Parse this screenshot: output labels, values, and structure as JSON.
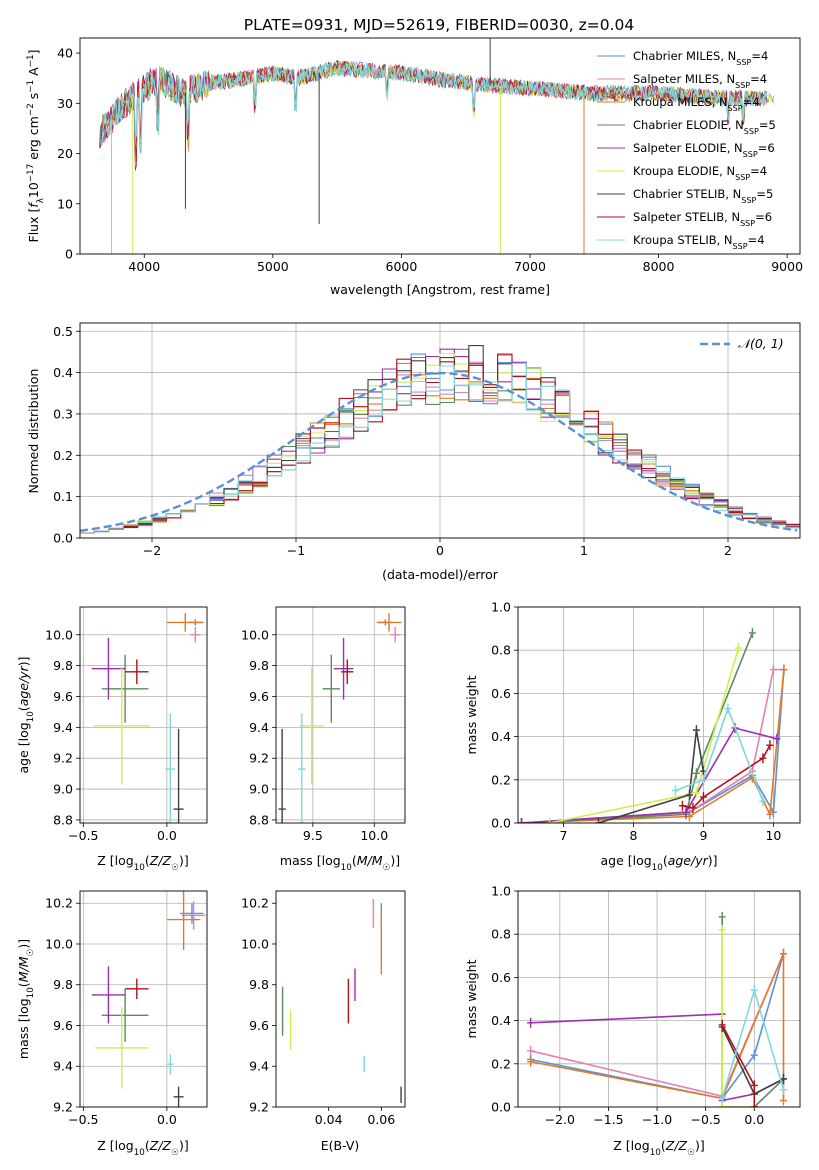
{
  "figure": {
    "title": "PLATE=0931, MJD=52619, FIBERID=0030, z=0.04"
  },
  "legend_entries": [
    {
      "name": "Chabrier MILES",
      "nssp": "4",
      "color": "#5b8fd8"
    },
    {
      "name": "Salpeter MILES",
      "nssp": "4",
      "color": "#e082b6"
    },
    {
      "name": "Kroupa MILES",
      "nssp": "4",
      "color": "#e07b27"
    },
    {
      "name": "Chabrier ELODIE",
      "nssp": "5",
      "color": "#5c8a5e"
    },
    {
      "name": "Salpeter ELODIE",
      "nssp": "6",
      "color": "#9b2fae"
    },
    {
      "name": "Kroupa ELODIE",
      "nssp": "4",
      "color": "#cfee4f"
    },
    {
      "name": "Chabrier STELIB",
      "nssp": "5",
      "color": "#404040"
    },
    {
      "name": "Salpeter STELIB",
      "nssp": "6",
      "color": "#b30f1a"
    },
    {
      "name": "Kroupa STELIB",
      "nssp": "4",
      "color": "#7fd8dd"
    }
  ],
  "chart_data": [
    {
      "id": "spectrum",
      "type": "line",
      "title": "PLATE=0931, MJD=52619, FIBERID=0030, z=0.04",
      "xlabel": "wavelength [Angstrom, rest frame]",
      "ylabel": "Flux [f_λ10^-17 erg cm^-2 s^-1 A^-1]",
      "xlim": [
        3500,
        9100
      ],
      "ylim": [
        0,
        43
      ],
      "xticks": [
        4000,
        5000,
        6000,
        7000,
        8000,
        9000
      ],
      "yticks": [
        0,
        10,
        20,
        30,
        40
      ],
      "grid": false,
      "legend": "top-right",
      "continuum": [
        {
          "x": 3650,
          "y": 24
        },
        {
          "x": 3750,
          "y": 27
        },
        {
          "x": 3850,
          "y": 30
        },
        {
          "x": 4000,
          "y": 33
        },
        {
          "x": 4100,
          "y": 35
        },
        {
          "x": 4300,
          "y": 32
        },
        {
          "x": 4500,
          "y": 34
        },
        {
          "x": 4800,
          "y": 35
        },
        {
          "x": 5000,
          "y": 36
        },
        {
          "x": 5200,
          "y": 35
        },
        {
          "x": 5500,
          "y": 37
        },
        {
          "x": 6000,
          "y": 36
        },
        {
          "x": 6500,
          "y": 34
        },
        {
          "x": 7000,
          "y": 33
        },
        {
          "x": 7500,
          "y": 32
        },
        {
          "x": 8000,
          "y": 32
        },
        {
          "x": 8500,
          "y": 31
        },
        {
          "x": 8850,
          "y": 31
        }
      ]
    },
    {
      "id": "residuals",
      "type": "line",
      "xlabel": "(data-model)/error",
      "ylabel": "Normed distribution",
      "xlim": [
        -2.5,
        2.5
      ],
      "ylim": [
        0,
        0.52
      ],
      "xticks": [
        -2,
        -1,
        0,
        1,
        2
      ],
      "yticks": [
        0.0,
        0.1,
        0.2,
        0.3,
        0.4,
        0.5
      ],
      "grid": true,
      "legend": "top-right",
      "reference_curve": {
        "name": "𝒩(0, 1)",
        "mean": 0,
        "sigma": 1,
        "color": "#5b8fd8"
      }
    },
    {
      "id": "age_vs_Z",
      "type": "scatter",
      "xlabel": "Z [log10(Z/Z☉)]",
      "ylabel": "age  [log10(age/yr)]",
      "xlim": [
        -0.52,
        0.24
      ],
      "ylim": [
        8.78,
        10.18
      ],
      "xticks": [
        -0.5,
        0.0
      ],
      "yticks": [
        8.8,
        9.0,
        9.2,
        9.4,
        9.6,
        9.8,
        10.0
      ],
      "grid": true,
      "points": [
        {
          "series": "Chabrier MILES",
          "x": 0.17,
          "y": 10.08,
          "xerr": 0.04,
          "yerr": 0.02
        },
        {
          "series": "Salpeter MILES",
          "x": 0.17,
          "y": 10.0,
          "xerr": 0.03,
          "yerr": 0.05
        },
        {
          "series": "Kroupa MILES",
          "x": 0.11,
          "y": 10.08,
          "xerr": 0.11,
          "yerr": 0.06
        },
        {
          "series": "Chabrier ELODIE",
          "x": -0.25,
          "y": 9.65,
          "xerr": 0.14,
          "yerr": 0.22
        },
        {
          "series": "Salpeter ELODIE",
          "x": -0.35,
          "y": 9.78,
          "xerr": 0.1,
          "yerr": 0.2
        },
        {
          "series": "Kroupa ELODIE",
          "x": -0.27,
          "y": 9.41,
          "xerr": 0.17,
          "yerr": 0.38
        },
        {
          "series": "Chabrier STELIB",
          "x": 0.07,
          "y": 8.87,
          "xerr": 0.03,
          "yerr": 0.52
        },
        {
          "series": "Salpeter STELIB",
          "x": -0.18,
          "y": 9.76,
          "xerr": 0.07,
          "yerr": 0.08
        },
        {
          "series": "Kroupa STELIB",
          "x": 0.02,
          "y": 9.13,
          "xerr": 0.03,
          "yerr": 0.36
        }
      ]
    },
    {
      "id": "age_vs_mass",
      "type": "scatter",
      "xlabel": "mass [log10(M/M☉)]",
      "ylabel": "",
      "xlim": [
        9.2,
        10.25
      ],
      "ylim": [
        8.78,
        10.18
      ],
      "xticks": [
        9.5,
        10.0
      ],
      "yticks": [
        8.8,
        9.0,
        9.2,
        9.4,
        9.6,
        9.8,
        10.0
      ],
      "grid": true,
      "points": [
        {
          "series": "Chabrier MILES",
          "x": 10.09,
          "y": 10.08,
          "xerr": 0.06,
          "yerr": 0.02
        },
        {
          "series": "Salpeter MILES",
          "x": 10.17,
          "y": 10.0,
          "xerr": 0.04,
          "yerr": 0.05
        },
        {
          "series": "Kroupa MILES",
          "x": 10.12,
          "y": 10.08,
          "xerr": 0.1,
          "yerr": 0.06
        },
        {
          "series": "Chabrier ELODIE",
          "x": 9.65,
          "y": 9.65,
          "xerr": 0.07,
          "yerr": 0.22
        },
        {
          "series": "Salpeter ELODIE",
          "x": 9.75,
          "y": 9.78,
          "xerr": 0.08,
          "yerr": 0.2
        },
        {
          "series": "Kroupa ELODIE",
          "x": 9.49,
          "y": 9.41,
          "xerr": 0.1,
          "yerr": 0.38
        },
        {
          "series": "Chabrier STELIB",
          "x": 9.25,
          "y": 8.87,
          "xerr": 0.03,
          "yerr": 0.52
        },
        {
          "series": "Salpeter STELIB",
          "x": 9.78,
          "y": 9.76,
          "xerr": 0.05,
          "yerr": 0.08
        },
        {
          "series": "Kroupa STELIB",
          "x": 9.41,
          "y": 9.13,
          "xerr": 0.03,
          "yerr": 0.36
        }
      ]
    },
    {
      "id": "weight_vs_age",
      "type": "line",
      "xlabel": "age  [log10(age/yr)]",
      "ylabel": "mass weight",
      "xlim": [
        6.35,
        10.38
      ],
      "ylim": [
        0,
        1
      ],
      "xticks": [
        7,
        8,
        9,
        10
      ],
      "yticks": [
        0.0,
        0.2,
        0.4,
        0.6,
        0.8,
        1.0
      ],
      "grid": true,
      "series": [
        {
          "name": "Chabrier MILES",
          "points": [
            [
              6.4,
              0.0
            ],
            [
              8.8,
              0.05
            ],
            [
              9.7,
              0.22
            ],
            [
              10.0,
              0.05
            ],
            [
              10.15,
              0.71
            ]
          ]
        },
        {
          "name": "Salpeter MILES",
          "points": [
            [
              6.4,
              0.0
            ],
            [
              8.8,
              0.05
            ],
            [
              9.7,
              0.24
            ],
            [
              10.0,
              0.71
            ],
            [
              10.15,
              0.71
            ]
          ]
        },
        {
          "name": "Kroupa MILES",
          "points": [
            [
              6.4,
              0.0
            ],
            [
              8.8,
              0.03
            ],
            [
              9.7,
              0.21
            ],
            [
              9.95,
              0.04
            ],
            [
              10.15,
              0.71
            ]
          ]
        },
        {
          "name": "Chabrier ELODIE",
          "points": [
            [
              6.4,
              0.0
            ],
            [
              8.75,
              0.04
            ],
            [
              8.9,
              0.23
            ],
            [
              9.7,
              0.88
            ]
          ]
        },
        {
          "name": "Salpeter ELODIE",
          "points": [
            [
              6.4,
              0.0
            ],
            [
              8.75,
              0.05
            ],
            [
              9.45,
              0.44
            ],
            [
              10.05,
              0.39
            ]
          ]
        },
        {
          "name": "Kroupa ELODIE",
          "points": [
            [
              6.8,
              0.0
            ],
            [
              8.9,
              0.14
            ],
            [
              9.5,
              0.81
            ]
          ]
        },
        {
          "name": "Chabrier STELIB",
          "points": [
            [
              7.5,
              0.0
            ],
            [
              8.8,
              0.13
            ],
            [
              8.9,
              0.43
            ],
            [
              9.0,
              0.24
            ]
          ]
        },
        {
          "name": "Salpeter STELIB",
          "points": [
            [
              8.7,
              0.08
            ],
            [
              8.85,
              0.07
            ],
            [
              9.0,
              0.12
            ],
            [
              9.85,
              0.3
            ],
            [
              9.95,
              0.36
            ]
          ]
        },
        {
          "name": "Kroupa STELIB",
          "points": [
            [
              8.6,
              0.15
            ],
            [
              9.0,
              0.2
            ],
            [
              9.35,
              0.53
            ],
            [
              9.85,
              0.1
            ]
          ]
        }
      ]
    },
    {
      "id": "mass_vs_Z",
      "type": "scatter",
      "xlabel": "Z [log10(Z/Z☉)]",
      "ylabel": "mass [log10(M/M☉)]",
      "xlim": [
        -0.52,
        0.24
      ],
      "ylim": [
        9.2,
        10.26
      ],
      "xticks": [
        -0.5,
        0.0
      ],
      "yticks": [
        9.2,
        9.4,
        9.6,
        9.8,
        10.0,
        10.2
      ],
      "grid": true,
      "points": [
        {
          "series": "Chabrier MILES",
          "x": 0.15,
          "y": 10.15,
          "xerr": 0.07,
          "yerr": 0.05
        },
        {
          "series": "Salpeter MILES",
          "x": 0.16,
          "y": 10.14,
          "xerr": 0.07,
          "yerr": 0.07
        },
        {
          "series": "Kroupa MILES",
          "x": 0.1,
          "y": 10.12,
          "xerr": 0.1,
          "yerr": 0.15
        },
        {
          "series": "Chabrier ELODIE",
          "x": -0.25,
          "y": 9.65,
          "xerr": 0.14,
          "yerr": 0.13
        },
        {
          "series": "Salpeter ELODIE",
          "x": -0.35,
          "y": 9.75,
          "xerr": 0.1,
          "yerr": 0.14
        },
        {
          "series": "Kroupa ELODIE",
          "x": -0.27,
          "y": 9.49,
          "xerr": 0.16,
          "yerr": 0.2
        },
        {
          "series": "Chabrier STELIB",
          "x": 0.07,
          "y": 9.25,
          "xerr": 0.03,
          "yerr": 0.05
        },
        {
          "series": "Salpeter STELIB",
          "x": -0.18,
          "y": 9.78,
          "xerr": 0.07,
          "yerr": 0.05
        },
        {
          "series": "Kroupa STELIB",
          "x": 0.02,
          "y": 9.41,
          "xerr": 0.02,
          "yerr": 0.05
        }
      ]
    },
    {
      "id": "mass_vs_EBV",
      "type": "scatter",
      "xlabel": "E(B-V)",
      "ylabel": "",
      "xlim": [
        0.02,
        0.069
      ],
      "ylim": [
        9.2,
        10.26
      ],
      "xticks": [
        0.04,
        0.06
      ],
      "yticks": [
        9.2,
        9.4,
        9.6,
        9.8,
        10.0,
        10.2
      ],
      "grid": false,
      "points": [
        {
          "series": "Chabrier MILES",
          "x": 0.06,
          "y": 10.15,
          "yerr": 0.05
        },
        {
          "series": "Salpeter MILES",
          "x": 0.057,
          "y": 10.15,
          "yerr": 0.07
        },
        {
          "series": "Kroupa MILES",
          "x": 0.06,
          "y": 10.0,
          "yerr": 0.15
        },
        {
          "series": "Chabrier ELODIE",
          "x": 0.0225,
          "y": 9.67,
          "yerr": 0.12
        },
        {
          "series": "Salpeter ELODIE",
          "x": 0.05,
          "y": 9.8,
          "yerr": 0.08
        },
        {
          "series": "Kroupa ELODIE",
          "x": 0.0255,
          "y": 9.58,
          "yerr": 0.1
        },
        {
          "series": "Chabrier STELIB",
          "x": 0.0675,
          "y": 9.26,
          "yerr": 0.04
        },
        {
          "series": "Salpeter STELIB",
          "x": 0.0475,
          "y": 9.72,
          "yerr": 0.11
        },
        {
          "series": "Kroupa STELIB",
          "x": 0.0535,
          "y": 9.41,
          "yerr": 0.04
        }
      ]
    },
    {
      "id": "weight_vs_Z",
      "type": "line",
      "xlabel": "Z [log10(Z/Z☉)]",
      "ylabel": "mass weight",
      "xlim": [
        -2.43,
        0.47
      ],
      "ylim": [
        0,
        1
      ],
      "xticks": [
        -2.0,
        -1.5,
        -1.0,
        -0.5,
        0.0
      ],
      "yticks": [
        0.0,
        0.2,
        0.4,
        0.6,
        0.8,
        1.0
      ],
      "grid": true,
      "series": [
        {
          "name": "Chabrier MILES",
          "points": [
            [
              -2.3,
              0.22
            ],
            [
              -0.33,
              0.04
            ],
            [
              0.0,
              0.24
            ],
            [
              0.3,
              0.71
            ]
          ]
        },
        {
          "name": "Salpeter MILES",
          "points": [
            [
              -2.3,
              0.26
            ],
            [
              -0.33,
              0.05
            ],
            [
              0.3,
              0.71
            ]
          ]
        },
        {
          "name": "Kroupa MILES",
          "points": [
            [
              -2.3,
              0.21
            ],
            [
              -0.33,
              0.04
            ],
            [
              0.3,
              0.71
            ],
            [
              0.3,
              0.03
            ]
          ]
        },
        {
          "name": "Chabrier ELODIE",
          "points": [
            [
              -0.33,
              0.88
            ],
            [
              -0.33,
              0.0
            ],
            [
              0.0,
              0.0
            ],
            [
              0.3,
              0.13
            ]
          ]
        },
        {
          "name": "Salpeter ELODIE",
          "points": [
            [
              -2.3,
              0.39
            ],
            [
              -0.33,
              0.43
            ],
            [
              -0.33,
              0.03
            ],
            [
              0.0,
              0.06
            ],
            [
              0.3,
              0.13
            ]
          ]
        },
        {
          "name": "Kroupa ELODIE",
          "points": [
            [
              -0.33,
              0.82
            ],
            [
              -0.33,
              0.0
            ],
            [
              0.0,
              0.0
            ]
          ]
        },
        {
          "name": "Chabrier STELIB",
          "points": [
            [
              -0.33,
              0.37
            ],
            [
              0.0,
              0.06
            ],
            [
              0.3,
              0.13
            ]
          ]
        },
        {
          "name": "Salpeter STELIB",
          "points": [
            [
              -0.33,
              0.38
            ],
            [
              0.0,
              0.1
            ],
            [
              0.0,
              0.0
            ]
          ]
        },
        {
          "name": "Kroupa STELIB",
          "points": [
            [
              -0.33,
              0.04
            ],
            [
              0.0,
              0.54
            ],
            [
              0.3,
              0.08
            ]
          ]
        }
      ]
    }
  ]
}
